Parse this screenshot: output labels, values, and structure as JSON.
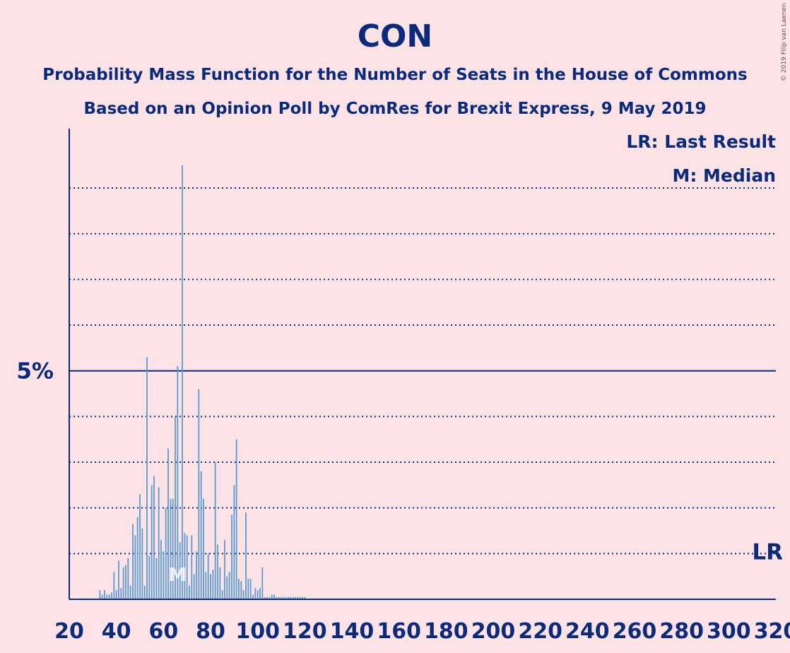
{
  "chart_data": {
    "type": "bar",
    "title": "CON",
    "subtitle_1": "Probability Mass Function for the Number of Seats in the House of Commons",
    "subtitle_2": "Based on an Opinion Poll by ComRes for Brexit Express, 9 May 2019",
    "legend": [
      "LR: Last Result",
      "M: Median"
    ],
    "copyright": "© 2019 Filip van Laenen",
    "xlim": [
      20,
      320
    ],
    "ylim": [
      0,
      10.3
    ],
    "x_ticks": [
      20,
      40,
      60,
      80,
      100,
      120,
      140,
      160,
      180,
      200,
      220,
      240,
      260,
      280,
      300,
      320
    ],
    "y_highlight": {
      "value": 5,
      "label": "5%"
    },
    "y_grid": [
      1,
      2,
      3,
      4,
      6,
      7,
      8,
      9
    ],
    "last_result": {
      "seat": 317,
      "label": "LR"
    },
    "median": {
      "seat": 66,
      "label": "M"
    },
    "bar_color": "#5B9BD5",
    "x": [
      33,
      34,
      35,
      36,
      37,
      38,
      39,
      40,
      41,
      42,
      43,
      44,
      45,
      46,
      47,
      48,
      49,
      50,
      51,
      52,
      53,
      54,
      55,
      56,
      57,
      58,
      59,
      60,
      61,
      62,
      63,
      64,
      65,
      66,
      67,
      68,
      69,
      70,
      71,
      72,
      73,
      74,
      75,
      76,
      77,
      78,
      79,
      80,
      81,
      82,
      83,
      84,
      85,
      86,
      87,
      88,
      89,
      90,
      91,
      92,
      93,
      94,
      95,
      96,
      97,
      98,
      99,
      100,
      101,
      102,
      103,
      104,
      105,
      106,
      107,
      108,
      109,
      110,
      111,
      112,
      113,
      114,
      115,
      116,
      117,
      118,
      119,
      120
    ],
    "values": [
      0.2,
      0.1,
      0.2,
      0.1,
      0.1,
      0.15,
      0.6,
      0.2,
      0.85,
      0.25,
      0.7,
      0.75,
      0.9,
      0.3,
      1.65,
      1.4,
      1.8,
      2.3,
      1.55,
      0.3,
      5.3,
      0.95,
      2.5,
      2.7,
      0.9,
      2.45,
      1.3,
      1.05,
      2.0,
      3.3,
      2.2,
      2.2,
      4.0,
      5.1,
      1.25,
      9.5,
      1.45,
      1.4,
      0.3,
      1.4,
      0.55,
      1.05,
      4.6,
      2.8,
      2.2,
      0.6,
      1.0,
      0.55,
      0.65,
      3.0,
      1.2,
      0.7,
      0.2,
      1.3,
      0.5,
      0.6,
      1.85,
      2.5,
      3.5,
      0.45,
      0.4,
      0.2,
      1.9,
      0.45,
      0.45,
      0.1,
      0.25,
      0.2,
      0.25,
      0.7,
      0.05,
      0.05,
      0.05,
      0.1,
      0.1,
      0.05,
      0.05,
      0.05,
      0.05,
      0.05,
      0.05,
      0.05,
      0.05,
      0.05,
      0.05,
      0.05,
      0.05,
      0.05
    ]
  }
}
